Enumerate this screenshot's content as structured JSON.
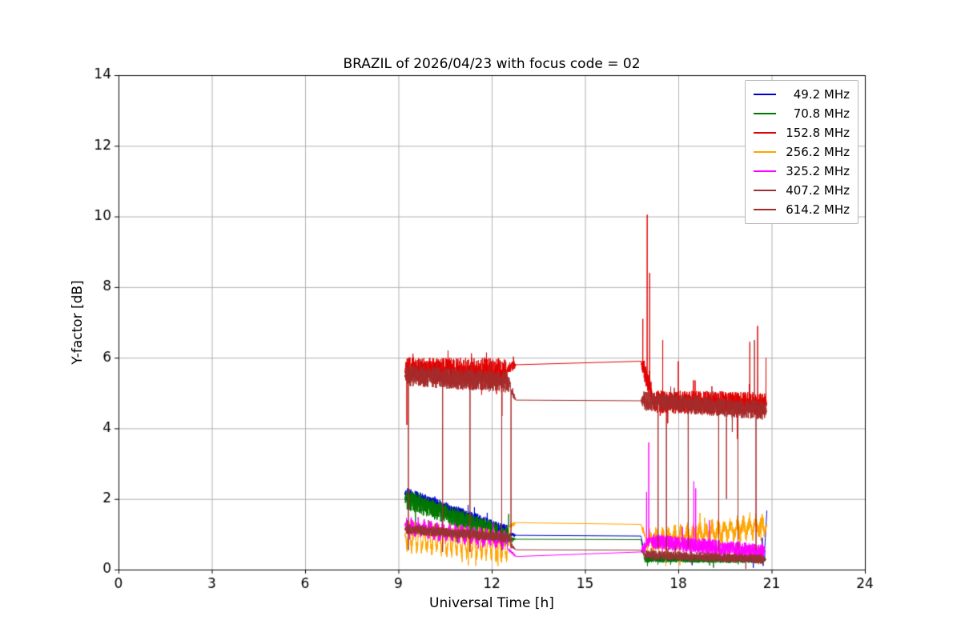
{
  "chart_data": {
    "type": "line",
    "title": "BRAZIL of 2026/04/23 with focus code = 02",
    "xlabel": "Universal Time [h]",
    "ylabel": "Y-factor [dB]",
    "xlim": [
      0,
      24
    ],
    "ylim": [
      0,
      14
    ],
    "xticks": [
      0,
      3,
      6,
      9,
      12,
      15,
      18,
      21,
      24
    ],
    "yticks": [
      0,
      2,
      4,
      6,
      8,
      10,
      12,
      14
    ],
    "grid": true,
    "legend_position": "upper right",
    "data_gap": {
      "note": "no data between ~12.8h and ~16.8h; straight connector lines span the gap",
      "x0": 12.78,
      "x1": 16.8
    },
    "series": [
      {
        "name": "49.2 MHz",
        "color": "#0000cc",
        "segments": [
          {
            "x0": 9.2,
            "x1": 12.55,
            "y0": 2.15,
            "y1": 1.05,
            "noise": 0.2
          },
          {
            "x0": 12.55,
            "x1": 12.78,
            "y0": 1.0,
            "y1": 0.97,
            "noise": 0.05
          },
          {
            "x0": 16.8,
            "x1": 16.92,
            "y0": 0.95,
            "y1": 0.4,
            "noise": 0.05
          },
          {
            "x0": 16.92,
            "x1": 20.78,
            "y0": 0.33,
            "y1": 0.3,
            "noise": 0.1,
            "spikes": [
              {
                "x": 20.7,
                "y": 0.9
              }
            ]
          },
          {
            "x0": 20.78,
            "x1": 20.85,
            "y0": 0.6,
            "y1": 1.7,
            "noise": 0.05
          }
        ]
      },
      {
        "name": "70.8 MHz",
        "color": "#007700",
        "segments": [
          {
            "x0": 9.2,
            "x1": 12.6,
            "y0": 2.0,
            "y1": 0.9,
            "noise": 0.28
          },
          {
            "x0": 12.6,
            "x1": 12.78,
            "y0": 0.88,
            "y1": 0.86,
            "noise": 0.04
          },
          {
            "x0": 16.8,
            "x1": 16.9,
            "y0": 0.85,
            "y1": 0.35,
            "noise": 0.05
          },
          {
            "x0": 16.9,
            "x1": 20.82,
            "y0": 0.3,
            "y1": 0.28,
            "noise": 0.1
          }
        ]
      },
      {
        "name": "152.8 MHz",
        "color": "#e00000",
        "segments": [
          {
            "x0": 9.2,
            "x1": 12.5,
            "y0": 5.65,
            "y1": 5.6,
            "noise": 0.38,
            "spikes": [
              {
                "x": 9.27,
                "y": 4.1
              },
              {
                "x": 12.33,
                "y": 4.35
              }
            ]
          },
          {
            "x0": 12.5,
            "x1": 12.78,
            "y0": 5.7,
            "y1": 5.8,
            "noise": 0.15
          },
          {
            "x0": 16.8,
            "x1": 17.18,
            "y0": 5.9,
            "y1": 4.9,
            "noise": 0.3,
            "spikes": [
              {
                "x": 16.86,
                "y": 7.1
              },
              {
                "x": 17.0,
                "y": 10.05
              },
              {
                "x": 17.08,
                "y": 8.4
              }
            ]
          },
          {
            "x0": 17.18,
            "x1": 20.85,
            "y0": 4.75,
            "y1": 4.7,
            "noise": 0.33,
            "spikes": [
              {
                "x": 17.5,
                "y": 6.5
              },
              {
                "x": 18.0,
                "y": 5.9
              },
              {
                "x": 19.9,
                "y": 3.7
              },
              {
                "x": 20.3,
                "y": 6.45
              },
              {
                "x": 20.55,
                "y": 6.9
              },
              {
                "x": 20.82,
                "y": 6.0
              }
            ]
          }
        ]
      },
      {
        "name": "256.2 MHz",
        "color": "#ffa500",
        "segments": [
          {
            "x0": 9.2,
            "x1": 12.55,
            "y0": 0.95,
            "y1": 0.65,
            "noise": 0.18,
            "osc": {
              "a": 0.32,
              "p": 0.16
            },
            "spikes": [
              {
                "x": 11.25,
                "y": 0.12
              },
              {
                "x": 12.2,
                "y": 0.1
              }
            ]
          },
          {
            "x0": 12.55,
            "x1": 12.78,
            "y0": 1.2,
            "y1": 1.33,
            "noise": 0.06
          },
          {
            "x0": 16.8,
            "x1": 16.95,
            "y0": 1.28,
            "y1": 0.9,
            "noise": 0.1
          },
          {
            "x0": 16.95,
            "x1": 20.85,
            "y0": 0.8,
            "y1": 1.25,
            "noise": 0.22,
            "osc": {
              "a": 0.18,
              "p": 0.2
            },
            "spikes": [
              {
                "x": 17.6,
                "y": 0.1
              },
              {
                "x": 18.05,
                "y": 0.12
              },
              {
                "x": 20.7,
                "y": 1.55
              }
            ]
          }
        ]
      },
      {
        "name": "325.2 MHz",
        "color": "#ff00ff",
        "segments": [
          {
            "x0": 9.2,
            "x1": 12.5,
            "y0": 1.25,
            "y1": 0.8,
            "noise": 0.18,
            "osc": {
              "a": 0.12,
              "p": 0.2
            }
          },
          {
            "x0": 12.5,
            "x1": 12.78,
            "y0": 0.6,
            "y1": 0.37,
            "noise": 0.04
          },
          {
            "x0": 16.8,
            "x1": 17.12,
            "y0": 0.5,
            "y1": 0.9,
            "noise": 0.15,
            "spikes": [
              {
                "x": 16.98,
                "y": 2.2
              },
              {
                "x": 17.05,
                "y": 3.6
              }
            ]
          },
          {
            "x0": 17.12,
            "x1": 20.8,
            "y0": 0.8,
            "y1": 0.5,
            "noise": 0.22,
            "spikes": [
              {
                "x": 18.5,
                "y": 2.5
              },
              {
                "x": 18.56,
                "y": 2.3
              },
              {
                "x": 19.0,
                "y": 1.4
              }
            ]
          }
        ]
      },
      {
        "name": "407.2 MHz",
        "color": "#993232",
        "segments": [
          {
            "x0": 9.2,
            "x1": 12.6,
            "y0": 1.15,
            "y1": 0.9,
            "noise": 0.14
          },
          {
            "x0": 12.6,
            "x1": 12.78,
            "y0": 0.7,
            "y1": 0.56,
            "noise": 0.04
          },
          {
            "x0": 16.8,
            "x1": 16.9,
            "y0": 0.55,
            "y1": 0.45,
            "noise": 0.05
          },
          {
            "x0": 16.9,
            "x1": 20.8,
            "y0": 0.42,
            "y1": 0.3,
            "noise": 0.13
          }
        ]
      },
      {
        "name": "614.2 MHz",
        "color": "#a52a2a",
        "segments": [
          {
            "x0": 9.2,
            "x1": 12.6,
            "y0": 5.5,
            "y1": 5.3,
            "noise": 0.3,
            "spikes": [
              {
                "x": 9.32,
                "y": 0.55
              },
              {
                "x": 10.42,
                "y": 0.5
              },
              {
                "x": 11.3,
                "y": 0.5
              },
              {
                "x": 12.32,
                "y": 0.55
              }
            ]
          },
          {
            "x0": 12.6,
            "x1": 12.78,
            "y0": 5.1,
            "y1": 4.8,
            "noise": 0.1,
            "spikes": [
              {
                "x": 12.62,
                "y": 0.6
              }
            ]
          },
          {
            "x0": 16.8,
            "x1": 20.85,
            "y0": 4.78,
            "y1": 4.5,
            "noise": 0.27,
            "spikes": [
              {
                "x": 17.35,
                "y": 0.6
              },
              {
                "x": 17.62,
                "y": 0.5
              },
              {
                "x": 18.32,
                "y": 0.6
              },
              {
                "x": 19.3,
                "y": 0.5
              },
              {
                "x": 19.55,
                "y": 2.0
              },
              {
                "x": 19.92,
                "y": 0.6
              },
              {
                "x": 20.45,
                "y": 6.5
              },
              {
                "x": 20.5,
                "y": 0.55
              }
            ]
          }
        ]
      }
    ]
  }
}
